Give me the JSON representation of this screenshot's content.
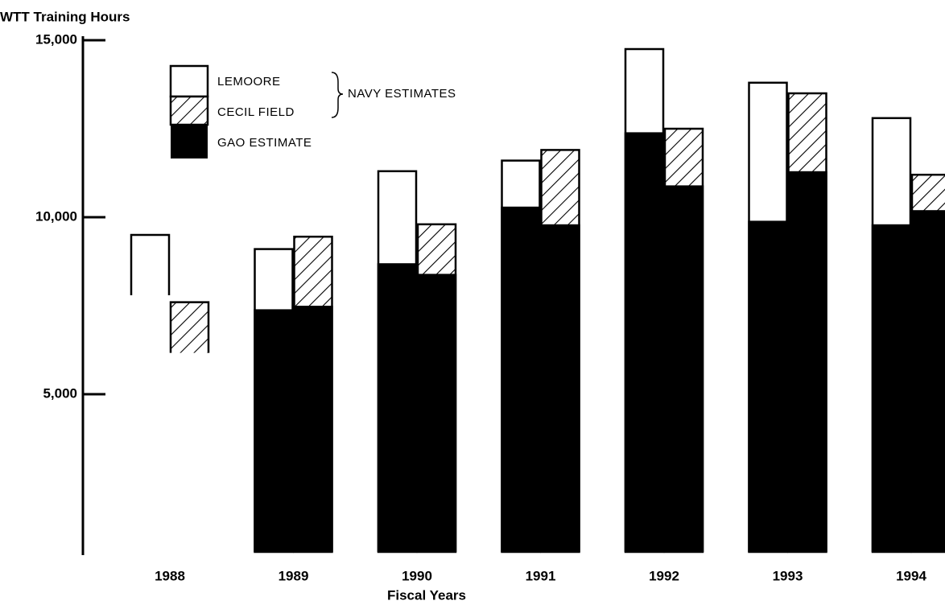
{
  "chart_data": {
    "type": "bar",
    "y_label": "WTT Training Hours",
    "x_label": "Fiscal Years",
    "legend_group": "NAVY ESTIMATES",
    "categories": [
      "1988",
      "1989",
      "1990",
      "1991",
      "1992",
      "1993",
      "1994"
    ],
    "series": [
      {
        "name": "LEMOORE",
        "color": "#ffffff",
        "values": [
          9500,
          9100,
          11300,
          11600,
          14750,
          13800,
          12800
        ]
      },
      {
        "name": "CECIL FIELD",
        "color": "hatch",
        "values": [
          7600,
          9450,
          9800,
          11900,
          12500,
          13500,
          11200
        ]
      },
      {
        "name": "GAO ESTIMATE",
        "color": "#000000",
        "lemoore": [
          null,
          7400,
          8700,
          10300,
          12400,
          9900,
          9800
        ],
        "cecil": [
          null,
          7500,
          8400,
          9800,
          10900,
          11300,
          10200
        ]
      }
    ],
    "ylim": [
      0,
      15000
    ],
    "yticks": [
      {
        "value": 5000,
        "label": "5,000"
      },
      {
        "value": 10000,
        "label": "10,000"
      },
      {
        "value": 15000,
        "label": "15,000"
      }
    ]
  }
}
